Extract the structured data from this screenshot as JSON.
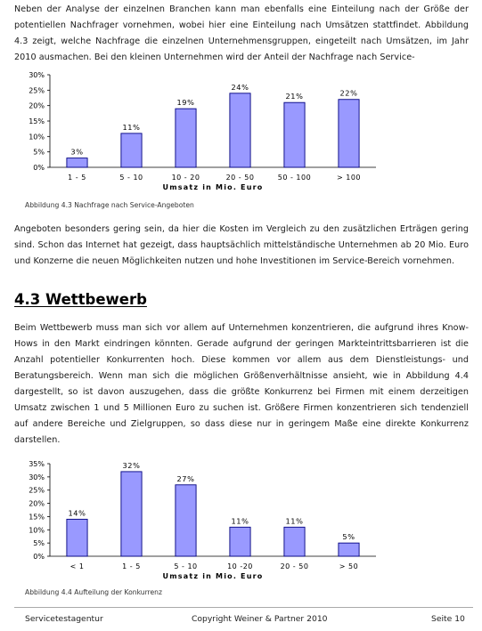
{
  "paragraphs": {
    "intro": "Neben der Analyse der einzelnen Branchen kann man ebenfalls eine Einteilung nach der Größe der potentiellen Nachfrager vornehmen, wobei hier eine Einteilung nach Umsätzen stattfindet. Abbildung 4.3 zeigt, welche Nachfrage die einzelnen Unternehmensgruppen, eingeteilt nach Umsätzen, im Jahr 2010 ausmachen. Bei den kleinen Unternehmen wird der Anteil der Nachfrage nach Service-",
    "after_chart1": "Angeboten besonders gering sein, da hier die Kosten im Vergleich zu den zusätzlichen Erträgen gering sind. Schon das Internet hat gezeigt, dass hauptsächlich mittelständische Unternehmen ab 20 Mio. Euro und Konzerne die neuen Möglichkeiten nutzen und hohe Investitionen im Service-Bereich vornehmen.",
    "wettbewerb": "Beim Wettbewerb muss man sich vor allem auf Unternehmen konzentrieren, die aufgrund ihres Know-Hows in den Markt eindringen könnten. Gerade aufgrund der geringen Markteintrittsbarrieren ist die Anzahl potentieller Konkurrenten hoch. Diese kommen vor allem aus dem Dienstleistungs- und Beratungsbereich. Wenn man sich die möglichen Größenverhältnisse ansieht, wie in Abbildung 4.4 dargestellt, so ist davon auszugehen, dass die größte Konkurrenz bei Firmen mit einem derzeitigen Umsatz zwischen 1 und 5 Millionen Euro zu suchen ist. Größere Firmen konzentrieren sich tendenziell auf andere Bereiche und Zielgruppen, so dass diese nur in geringem Maße eine direkte Konkurrenz darstellen."
  },
  "section_heading": "4.3 Wettbewerb",
  "captions": {
    "chart1": "Abbildung 4.3 Nachfrage nach Service-Angeboten",
    "chart2": "Abbildung 4.4 Aufteilung der Konkurrenz"
  },
  "footer": {
    "left": "Servicetestagentur",
    "center": "Copyright Weiner & Partner 2010",
    "right": "Seite 10"
  },
  "colors": {
    "bar_fill": "#9999ff",
    "bar_stroke": "#000080"
  },
  "chart_data": [
    {
      "type": "bar",
      "categories": [
        "1 - 5",
        "5 - 10",
        "10 - 20",
        "20 - 50",
        "50 - 100",
        "> 100"
      ],
      "values": [
        3,
        11,
        19,
        24,
        21,
        22
      ],
      "value_labels": [
        "3%",
        "11%",
        "19%",
        "24%",
        "21%",
        "22%"
      ],
      "xlabel": "Umsatz in Mio. Euro",
      "ylabel": "",
      "ylim": [
        0,
        30
      ],
      "yticks": [
        "0%",
        "5%",
        "10%",
        "15%",
        "20%",
        "25%",
        "30%"
      ],
      "grid": false,
      "legend": "none"
    },
    {
      "type": "bar",
      "categories": [
        "< 1",
        "1 - 5",
        "5 - 10",
        "10 -20",
        "20 - 50",
        "> 50"
      ],
      "values": [
        14,
        32,
        27,
        11,
        11,
        5
      ],
      "value_labels": [
        "14%",
        "32%",
        "27%",
        "11%",
        "11%",
        "5%"
      ],
      "xlabel": "Umsatz in Mio. Euro",
      "ylabel": "",
      "ylim": [
        0,
        35
      ],
      "yticks": [
        "0%",
        "5%",
        "10%",
        "15%",
        "20%",
        "25%",
        "30%",
        "35%"
      ],
      "grid": false,
      "legend": "none"
    }
  ]
}
